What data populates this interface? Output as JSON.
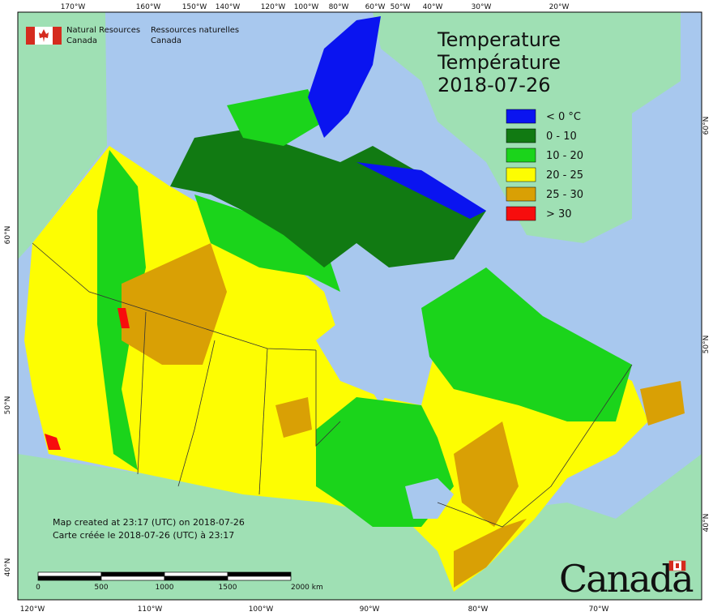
{
  "logo": {
    "en_line1": "Natural Resources",
    "en_line2": "Canada",
    "fr_line1": "Ressources naturelles",
    "fr_line2": "Canada"
  },
  "title": {
    "en": "Temperature",
    "fr": "Température",
    "date": "2018-07-26"
  },
  "legend": [
    {
      "label": "< 0 °C",
      "color": "#0a14f0"
    },
    {
      "label": "0 - 10",
      "color": "#117a12"
    },
    {
      "label": "10 - 20",
      "color": "#1bd41b"
    },
    {
      "label": "20 - 25",
      "color": "#fdfd02"
    },
    {
      "label": "25 - 30",
      "color": "#d9a005"
    },
    {
      "label": "> 30",
      "color": "#f70d0d"
    }
  ],
  "longitude_top": [
    "170°W",
    "160°W",
    "150°W",
    "140°W",
    "120°W",
    "100°W",
    "80°W",
    "60°W",
    "50°W",
    "40°W",
    "30°W",
    "20°W"
  ],
  "longitude_bottom": [
    "120°W",
    "110°W",
    "100°W",
    "90°W",
    "80°W",
    "70°W"
  ],
  "latitude_left": [
    "60°N",
    "50°N",
    "40°N"
  ],
  "latitude_right": [
    "60°N",
    "50°N",
    "40°N"
  ],
  "notes": {
    "en": "Map created at 23:17 (UTC) on 2018-07-26",
    "fr": "Carte créée le 2018-07-26 (UTC) à 23:17"
  },
  "scale": [
    "0",
    "500",
    "1000",
    "1500",
    "2000 km"
  ],
  "wordmark": "Canada"
}
